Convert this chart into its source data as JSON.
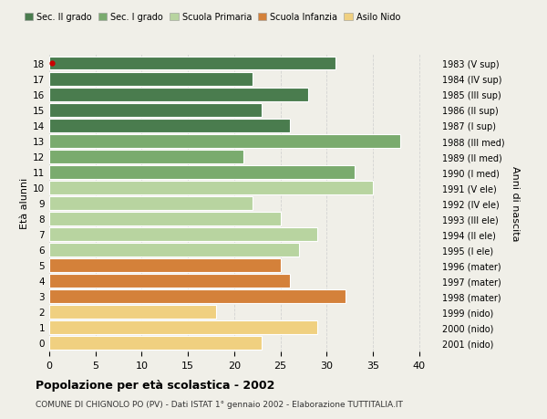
{
  "ages": [
    18,
    17,
    16,
    15,
    14,
    13,
    12,
    11,
    10,
    9,
    8,
    7,
    6,
    5,
    4,
    3,
    2,
    1,
    0
  ],
  "values": [
    31,
    22,
    28,
    23,
    26,
    38,
    21,
    33,
    35,
    22,
    25,
    29,
    27,
    25,
    26,
    32,
    18,
    29,
    23
  ],
  "right_labels": [
    "1983 (V sup)",
    "1984 (IV sup)",
    "1985 (III sup)",
    "1986 (II sup)",
    "1987 (I sup)",
    "1988 (III med)",
    "1989 (II med)",
    "1990 (I med)",
    "1991 (V ele)",
    "1992 (IV ele)",
    "1993 (III ele)",
    "1994 (II ele)",
    "1995 (I ele)",
    "1996 (mater)",
    "1997 (mater)",
    "1998 (mater)",
    "1999 (nido)",
    "2000 (nido)",
    "2001 (nido)"
  ],
  "colors": [
    "#4a7c4e",
    "#4a7c4e",
    "#4a7c4e",
    "#4a7c4e",
    "#4a7c4e",
    "#7aab6e",
    "#7aab6e",
    "#7aab6e",
    "#b8d4a0",
    "#b8d4a0",
    "#b8d4a0",
    "#b8d4a0",
    "#b8d4a0",
    "#d4813a",
    "#d4813a",
    "#d4813a",
    "#f0d080",
    "#f0d080",
    "#f0d080"
  ],
  "legend_labels": [
    "Sec. II grado",
    "Sec. I grado",
    "Scuola Primaria",
    "Scuola Infanzia",
    "Asilo Nido"
  ],
  "legend_colors": [
    "#4a7c4e",
    "#7aab6e",
    "#b8d4a0",
    "#d4813a",
    "#f0d080"
  ],
  "ylabel_left": "Età alunni",
  "ylabel_right": "Anni di nascita",
  "title": "Popolazione per età scolastica - 2002",
  "subtitle": "COMUNE DI CHIGNOLO PO (PV) - Dati ISTAT 1° gennaio 2002 - Elaborazione TUTTITALIA.IT",
  "xlim": [
    0,
    42
  ],
  "xticks": [
    0,
    5,
    10,
    15,
    20,
    25,
    30,
    35,
    40
  ],
  "background_color": "#f0efe8",
  "bar_edge_color": "white",
  "bar_linewidth": 0.8,
  "dot_age": 18,
  "dot_color": "#cc0000",
  "grid_color": "#cccccc",
  "grid_style": "--"
}
